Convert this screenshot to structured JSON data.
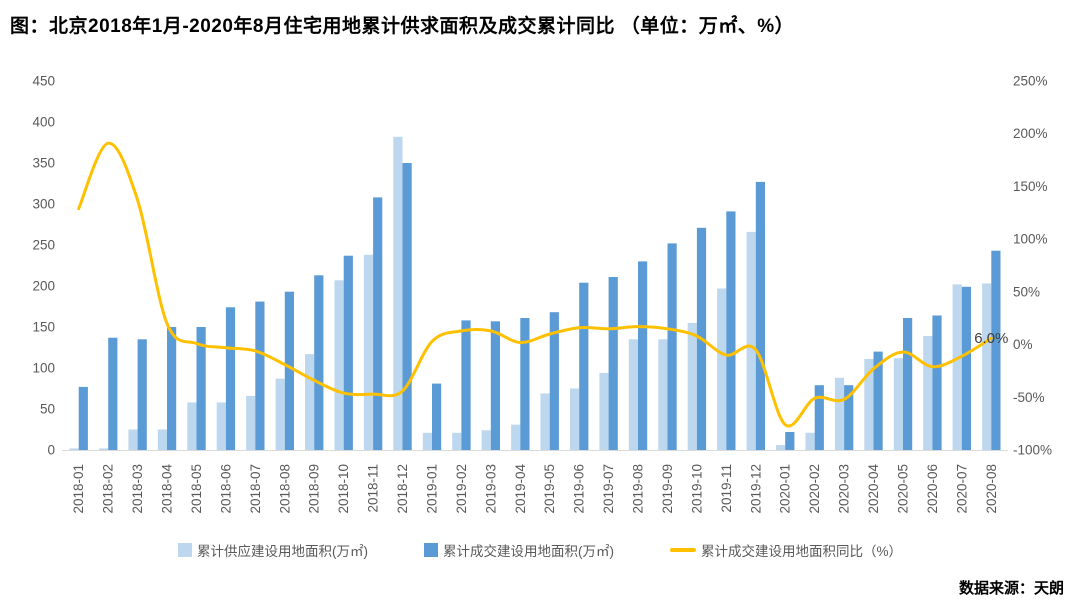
{
  "header": {
    "title": "图：北京2018年1月-2020年8月住宅用地累计供求面积及成交累计同比 （单位：万㎡、%）"
  },
  "chart_data": {
    "type": "bar+line",
    "title": "北京2018年1月-2020年8月住宅用地累计供求面积及成交累计同比",
    "units": "万㎡、%",
    "grid": false,
    "legend_position": "bottom",
    "categories": [
      "2018-01",
      "2018-02",
      "2018-03",
      "2018-04",
      "2018-05",
      "2018-06",
      "2018-07",
      "2018-08",
      "2018-09",
      "2018-10",
      "2018-11",
      "2018-12",
      "2019-01",
      "2019-02",
      "2019-03",
      "2019-04",
      "2019-05",
      "2019-06",
      "2019-07",
      "2019-08",
      "2019-09",
      "2019-10",
      "2019-11",
      "2019-12",
      "2020-01",
      "2020-02",
      "2020-03",
      "2020-04",
      "2020-05",
      "2020-06",
      "2020-07",
      "2020-08"
    ],
    "series": [
      {
        "name": "累计供应建设用地面积(万㎡)",
        "type": "bar",
        "axis": "left",
        "color": "#BDD7EE",
        "values": [
          2,
          2,
          25,
          25,
          58,
          58,
          66,
          87,
          117,
          207,
          238,
          382,
          21,
          21,
          24,
          31,
          69,
          75,
          94,
          135,
          135,
          155,
          197,
          266,
          6,
          21,
          88,
          111,
          112,
          139,
          202,
          203
        ]
      },
      {
        "name": "累计成交建设用地面积(万㎡)",
        "type": "bar",
        "axis": "left",
        "color": "#5B9BD5",
        "values": [
          77,
          137,
          135,
          150,
          150,
          174,
          181,
          193,
          213,
          237,
          308,
          350,
          81,
          158,
          157,
          161,
          168,
          204,
          211,
          230,
          252,
          271,
          291,
          327,
          22,
          79,
          79,
          120,
          161,
          164,
          199,
          243
        ]
      },
      {
        "name": "累计成交建设用地面积同比（%）",
        "type": "line",
        "axis": "right",
        "color": "#FFC000",
        "values": [
          129,
          191,
          137,
          20,
          1,
          -3,
          -6,
          -19,
          -34,
          -46,
          -47,
          -44,
          3,
          13,
          13,
          2,
          10,
          16,
          15,
          17,
          15,
          8,
          -10,
          -5,
          -76,
          -51,
          -52,
          -23,
          -7,
          -21,
          -11,
          6
        ]
      }
    ],
    "left_axis": {
      "min": 0,
      "max": 450,
      "step": 50,
      "tick_labels": [
        "0",
        "50",
        "100",
        "150",
        "200",
        "250",
        "300",
        "350",
        "400",
        "450"
      ]
    },
    "right_axis": {
      "min": -100,
      "max": 250,
      "step": 50,
      "tick_labels": [
        "-100%",
        "-50%",
        "0%",
        "50%",
        "100%",
        "150%",
        "200%",
        "250%"
      ]
    },
    "annotation": {
      "text": "6.0%",
      "series": 2,
      "index": 31,
      "color": "#404040"
    },
    "axis_text_color": "#595959",
    "baseline_color": "#D9D9D9"
  },
  "footer": {
    "source": "数据来源：天朗"
  }
}
